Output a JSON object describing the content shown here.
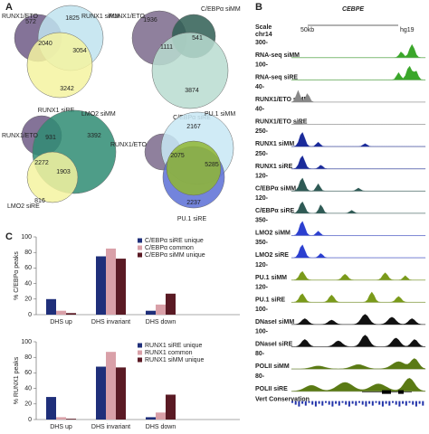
{
  "panel_letters": {
    "a": "A",
    "b": "B",
    "c": "C"
  },
  "panel_a": {
    "venns": [
      {
        "sets": [
          "RUNX1/ETO",
          "RUNX1 siMM",
          "RUNX1 siRE"
        ],
        "counts": [
          "572",
          "1825",
          "2040",
          "3054",
          "3242"
        ]
      },
      {
        "sets": [
          "RUNX1/ETO",
          "C/EBPα siMM",
          "C/EBPα siRE"
        ],
        "counts": [
          "1936",
          "541",
          "1111",
          "3874"
        ]
      },
      {
        "sets": [
          "RUNX1/ETO",
          "LMO2 siMM",
          "LMO2 siRE"
        ],
        "counts": [
          "931",
          "3392",
          "2272",
          "1903",
          "816"
        ]
      },
      {
        "sets": [
          "RUNX1/ETO",
          "PU.1 siMM",
          "PU.1 siRE"
        ],
        "counts": [
          "2167",
          "2075",
          "5285",
          "2237"
        ]
      }
    ]
  },
  "panel_b": {
    "gene": "CEBPE",
    "scale_label": "Scale",
    "chrom": "chr14",
    "scale_bar": "50kb",
    "assembly": "hg19",
    "tracks": [
      {
        "scale": "300-",
        "name": "RNA-seq siMM"
      },
      {
        "scale": "100-",
        "name": "RNA-seq siRE"
      },
      {
        "scale": "40-",
        "name": "RUNX1/ETO siMM"
      },
      {
        "scale": "40-",
        "name": "RUNX1/ETO siRE"
      },
      {
        "scale": "250-",
        "name": "RUNX1 siMM"
      },
      {
        "scale": "250-",
        "name": "RUNX1 siRE"
      },
      {
        "scale": "120-",
        "name": "C/EBPα siMM"
      },
      {
        "scale": "120-",
        "name": "C/EBPα siRE"
      },
      {
        "scale": "350-",
        "name": "LMO2 siMM"
      },
      {
        "scale": "350-",
        "name": "LMO2 siRE"
      },
      {
        "scale": "120-",
        "name": "PU.1 siMM"
      },
      {
        "scale": "120-",
        "name": "PU.1 siRE"
      },
      {
        "scale": "100-",
        "name": "DNaseI siMM"
      },
      {
        "scale": "100-",
        "name": "DNaseI siRE"
      },
      {
        "scale": "80-",
        "name": "POLII siMM"
      },
      {
        "scale": "80-",
        "name": "POLII siRE"
      }
    ],
    "conservation": "Vert Conservation"
  },
  "chart_data": [
    {
      "type": "bar",
      "ylabel": "% C/EBPα peaks",
      "categories": [
        "DHS up",
        "DHS invariant",
        "DHS down"
      ],
      "series": [
        {
          "name": "C/EBPα siRE unique",
          "color": "#1f2f7a",
          "values": [
            20,
            75,
            5
          ]
        },
        {
          "name": "C/EBPα common",
          "color": "#d9a0a8",
          "values": [
            5,
            85,
            13
          ]
        },
        {
          "name": "C/EBPα siMM unique",
          "color": "#5a1a24",
          "values": [
            2,
            72,
            27
          ]
        }
      ],
      "ylim": [
        0,
        100
      ],
      "yticks": [
        0,
        20,
        40,
        60,
        80,
        100
      ],
      "legend": "upper right"
    },
    {
      "type": "bar",
      "ylabel": "% RUNX1 peaks",
      "categories": [
        "DHS up",
        "DHS invariant",
        "DHS down"
      ],
      "series": [
        {
          "name": "RUNX1 siRE unique",
          "color": "#1f2f7a",
          "values": [
            29,
            68,
            3
          ]
        },
        {
          "name": "RUNX1 common",
          "color": "#d9a0a8",
          "values": [
            3,
            87,
            9
          ]
        },
        {
          "name": "RUNX1 siMM unique",
          "color": "#5a1a24",
          "values": [
            1,
            67,
            32
          ]
        }
      ],
      "ylim": [
        0,
        100
      ],
      "yticks": [
        0,
        20,
        40,
        60,
        80,
        100
      ],
      "legend": "upper right"
    }
  ]
}
